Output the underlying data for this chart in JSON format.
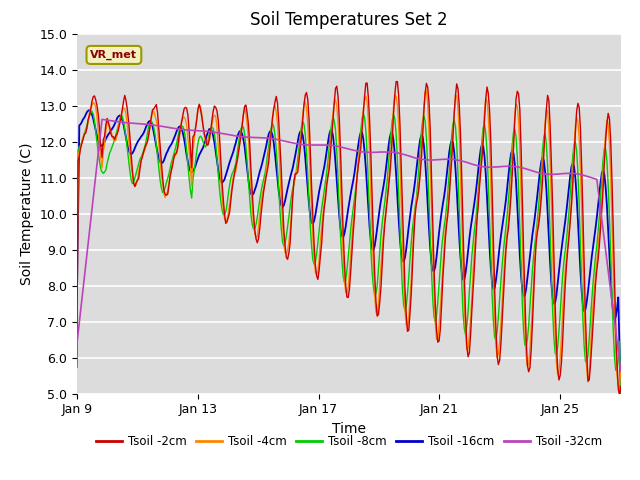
{
  "title": "Soil Temperatures Set 2",
  "xlabel": "Time",
  "ylabel": "Soil Temperature (C)",
  "ylim": [
    5.0,
    15.0
  ],
  "yticks": [
    5.0,
    6.0,
    7.0,
    8.0,
    9.0,
    10.0,
    11.0,
    12.0,
    13.0,
    14.0,
    15.0
  ],
  "xtick_labels": [
    "Jan 9",
    "Jan 13",
    "Jan 17",
    "Jan 21",
    "Jan 25"
  ],
  "xtick_positions": [
    0,
    4,
    8,
    12,
    16
  ],
  "bg_color": "#dcdcdc",
  "plot_bg": "#dcdcdc",
  "legend_entries": [
    "Tsoil -2cm",
    "Tsoil -4cm",
    "Tsoil -8cm",
    "Tsoil -16cm",
    "Tsoil -32cm"
  ],
  "line_colors": [
    "#cc0000",
    "#ff8800",
    "#00cc00",
    "#0000cc",
    "#bb44bb"
  ],
  "annotation_text": "VR_met",
  "days": 18,
  "pts_per_day": 24,
  "title_fontsize": 12,
  "label_fontsize": 10,
  "tick_fontsize": 9
}
